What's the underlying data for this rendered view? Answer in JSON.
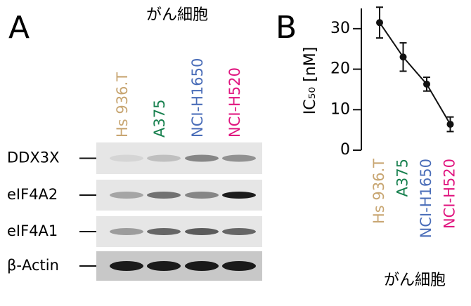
{
  "panel_a": {
    "label": "A",
    "header": "がん細胞",
    "proteins": [
      "DDX3X",
      "eIF4A2",
      "eIF4A1",
      "β-Actin"
    ]
  },
  "chart_data": {
    "type": "line",
    "label": "B",
    "categories": [
      "Hs 936.T",
      "A375",
      "NCI-H1650",
      "NCI-H520"
    ],
    "category_colors": [
      "#c8a672",
      "#17804e",
      "#4a6db8",
      "#e0157f"
    ],
    "series": [
      {
        "values": [
          31.5,
          23,
          16.3,
          6.4
        ],
        "errors": [
          3.8,
          3.5,
          1.7,
          1.8
        ],
        "color": "#111111"
      }
    ],
    "x_label": "がん細胞",
    "y_label": "IC₅₀ [nM]",
    "ylim": [
      0,
      35
    ],
    "yticks": [
      0,
      10,
      20,
      30
    ]
  }
}
